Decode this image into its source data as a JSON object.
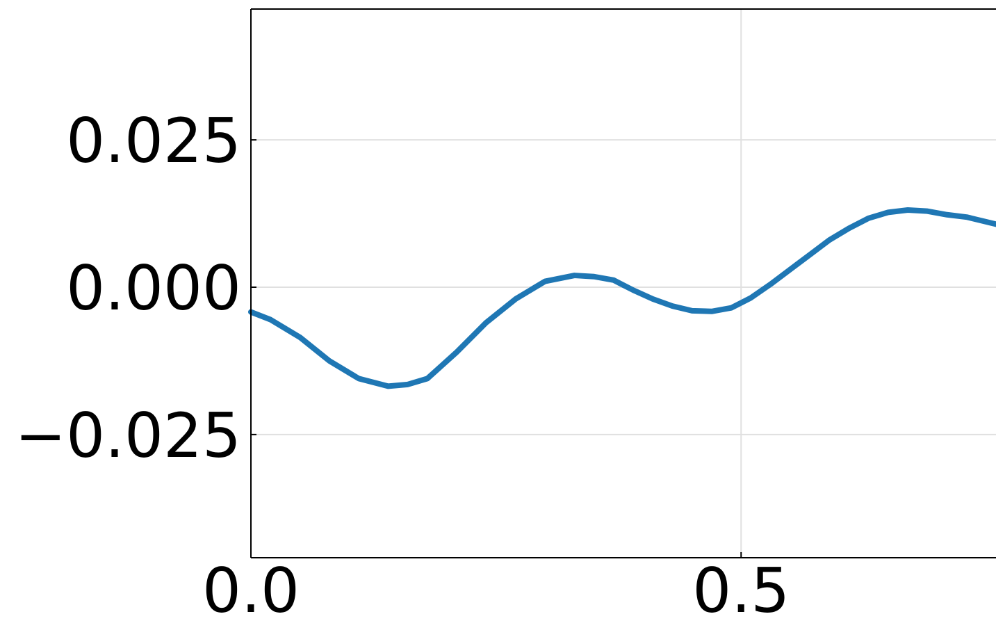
{
  "chart_data": {
    "type": "line",
    "title": "",
    "xlabel": "",
    "ylabel": "",
    "xlim": [
      0.0,
      0.76
    ],
    "ylim": [
      -0.0459,
      0.0472
    ],
    "grid": true,
    "x_ticks": [
      {
        "value": 0.0,
        "label": "0.0"
      },
      {
        "value": 0.5,
        "label": "0.5"
      }
    ],
    "y_ticks": [
      {
        "value": 0.025,
        "label": "0.025"
      },
      {
        "value": 0.0,
        "label": "0.000"
      },
      {
        "value": -0.025,
        "label": "−0.025"
      }
    ],
    "series": [
      {
        "color": "#1f77b4",
        "x": [
          0.0,
          0.02,
          0.05,
          0.08,
          0.11,
          0.14,
          0.16,
          0.18,
          0.21,
          0.24,
          0.27,
          0.3,
          0.33,
          0.35,
          0.37,
          0.39,
          0.41,
          0.43,
          0.45,
          0.47,
          0.49,
          0.51,
          0.53,
          0.55,
          0.57,
          0.59,
          0.61,
          0.63,
          0.65,
          0.67,
          0.69,
          0.71,
          0.73,
          0.76
        ],
        "y": [
          -0.0042,
          -0.0055,
          -0.0085,
          -0.0125,
          -0.0155,
          -0.0168,
          -0.0165,
          -0.0155,
          -0.011,
          -0.006,
          -0.002,
          0.001,
          0.002,
          0.0018,
          0.0012,
          -0.0005,
          -0.002,
          -0.0032,
          -0.004,
          -0.0041,
          -0.0035,
          -0.0018,
          0.0005,
          0.003,
          0.0055,
          0.008,
          0.01,
          0.0117,
          0.0127,
          0.0131,
          0.0129,
          0.0123,
          0.0119,
          0.0107
        ]
      }
    ]
  }
}
